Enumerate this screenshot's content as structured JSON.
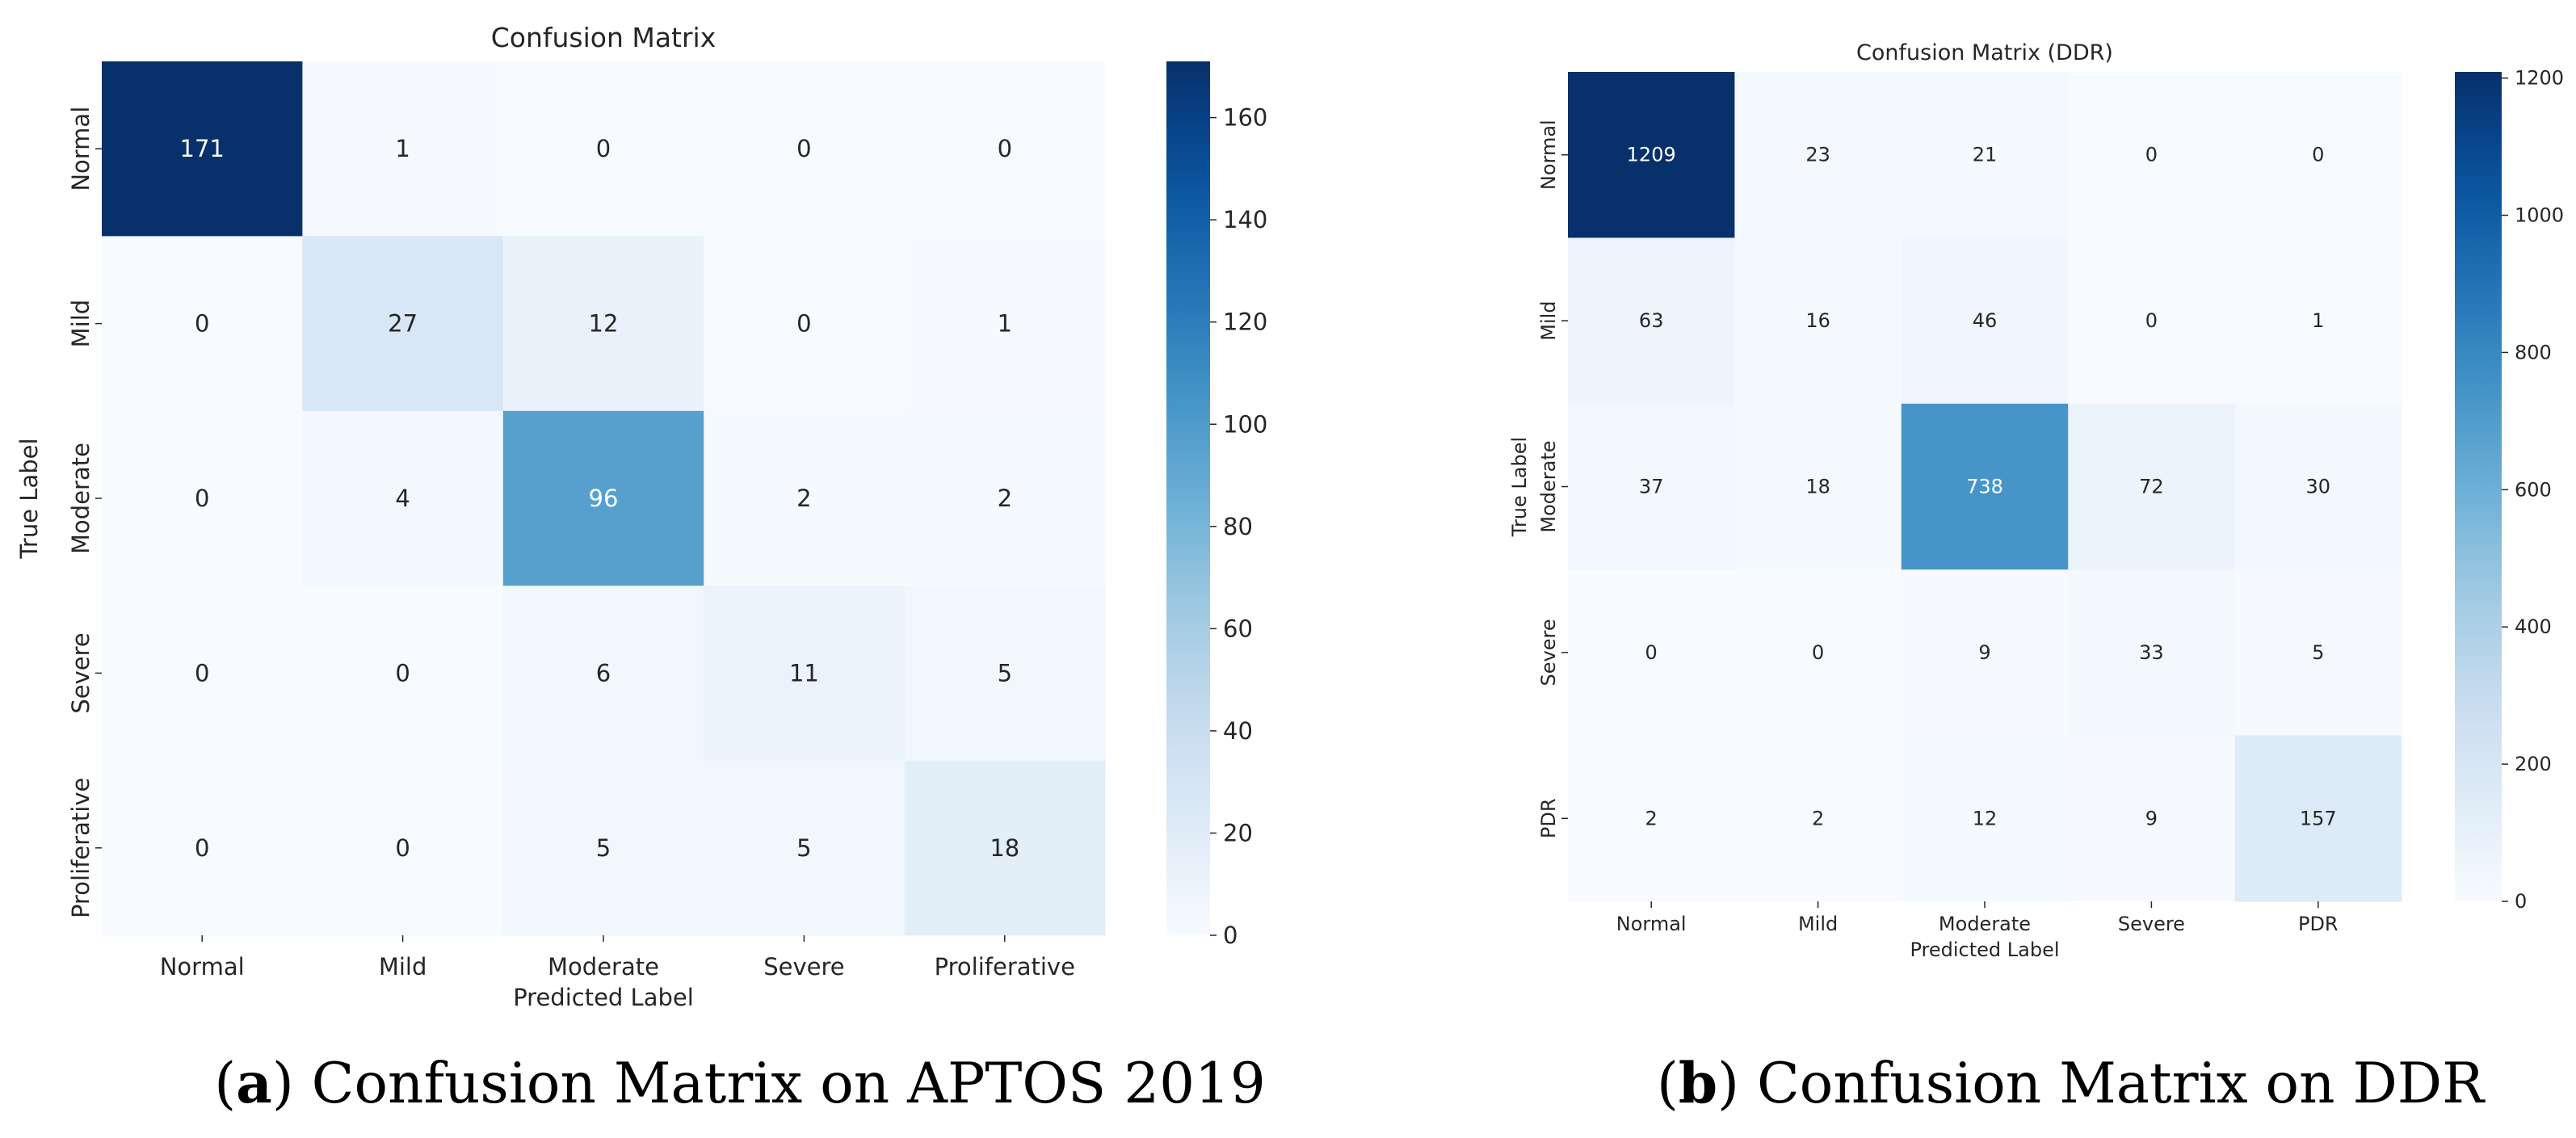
{
  "chart_data": [
    {
      "type": "heatmap",
      "title": "Confusion Matrix",
      "xlabel": "Predicted Label",
      "ylabel": "True Label",
      "x_categories": [
        "Normal",
        "Mild",
        "Moderate",
        "Severe",
        "Proliferative"
      ],
      "y_categories": [
        "Normal",
        "Mild",
        "Moderate",
        "Severe",
        "Proliferative"
      ],
      "values": [
        [
          171,
          1,
          0,
          0,
          0
        ],
        [
          0,
          27,
          12,
          0,
          1
        ],
        [
          0,
          4,
          96,
          2,
          2
        ],
        [
          0,
          0,
          6,
          11,
          5
        ],
        [
          0,
          0,
          5,
          5,
          18
        ]
      ],
      "vmin": 0,
      "vmax": 171,
      "colorbar_ticks": [
        0,
        20,
        40,
        60,
        80,
        100,
        120,
        140,
        160
      ],
      "colormap": "Blues",
      "caption_letter": "a",
      "caption_text": ") Confusion Matrix on APTOS 2019"
    },
    {
      "type": "heatmap",
      "title": "Confusion Matrix (DDR)",
      "xlabel": "Predicted Label",
      "ylabel": "True Label",
      "x_categories": [
        "Normal",
        "Mild",
        "Moderate",
        "Severe",
        "PDR"
      ],
      "y_categories": [
        "Normal",
        "Mild",
        "Moderate",
        "Severe",
        "PDR"
      ],
      "values": [
        [
          1209,
          23,
          21,
          0,
          0
        ],
        [
          63,
          16,
          46,
          0,
          1
        ],
        [
          37,
          18,
          738,
          72,
          30
        ],
        [
          0,
          0,
          9,
          33,
          5
        ],
        [
          2,
          2,
          12,
          9,
          157
        ]
      ],
      "vmin": 0,
      "vmax": 1209,
      "colorbar_ticks": [
        0,
        200,
        400,
        600,
        800,
        1000,
        1200
      ],
      "colormap": "Blues",
      "caption_letter": "b",
      "caption_text": ") Confusion Matrix on DDR"
    }
  ]
}
